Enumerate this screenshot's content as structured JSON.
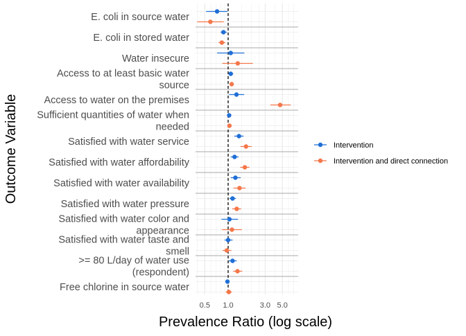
{
  "chart_data": {
    "type": "scatter",
    "subtype": "forest-plot",
    "title": "",
    "xlabel": "Prevalence Ratio (log scale)",
    "ylabel": "Outcome Variable",
    "x_scale": "log",
    "xlim": [
      0.38,
      8.0
    ],
    "x_ticks": [
      0.5,
      1.0,
      3.0,
      5.0
    ],
    "x_tick_labels": [
      "0.5",
      "1.0",
      "3.0",
      "5.0"
    ],
    "reference_line": 1.0,
    "grid": true,
    "legend_position": "right",
    "categories": [
      "E. coli in source water",
      "E. coli in stored water",
      "Water insecure",
      "Access to at least basic water source",
      "Access to water on the premises",
      "Sufficient quantities of water when needed",
      "Satisfied with water service",
      "Satisfied with water affordability",
      "Satisfied with water availability",
      "Satisfied with water pressure",
      "Satisfied with water color and appearance",
      "Satisfied with water taste and smell",
      ">= 80 L/day of water use (respondent)",
      "Free chlorine in source water"
    ],
    "category_label_lines": [
      [
        "E. coli in source water"
      ],
      [
        "E. coli in stored water"
      ],
      [
        "Water insecure"
      ],
      [
        "Access to at least basic water",
        "source"
      ],
      [
        "Access to water on the premises"
      ],
      [
        "Sufficient quantities of water when",
        "needed"
      ],
      [
        "Satisfied with water service"
      ],
      [
        "Satisfied with water affordability"
      ],
      [
        "Satisfied with water availability"
      ],
      [
        "Satisfied with water pressure"
      ],
      [
        "Satisfied with water color and",
        "appearance"
      ],
      [
        "Satisfied with water taste and",
        "smell"
      ],
      [
        ">= 80 L/day of water use",
        "(respondent)"
      ],
      [
        "Free chlorine in source water"
      ]
    ],
    "series": [
      {
        "name": "Intervention",
        "color": "#1f6fd6",
        "values": [
          0.72,
          0.87,
          1.08,
          1.08,
          1.28,
          1.03,
          1.38,
          1.21,
          1.24,
          1.14,
          1.04,
          1.0,
          1.14,
          0.98
        ],
        "lower": [
          0.52,
          0.8,
          0.72,
          1.02,
          1.03,
          0.99,
          1.2,
          1.08,
          1.08,
          1.04,
          0.82,
          0.9,
          1.01,
          0.92
        ],
        "upper": [
          0.98,
          0.96,
          1.62,
          1.16,
          1.61,
          1.06,
          1.58,
          1.36,
          1.45,
          1.26,
          1.34,
          1.14,
          1.29,
          1.04
        ]
      },
      {
        "name": "Intervention and direct connection",
        "color": "#f4774a",
        "values": [
          0.59,
          0.83,
          1.33,
          1.11,
          4.68,
          1.04,
          1.7,
          1.64,
          1.4,
          1.29,
          1.12,
          0.96,
          1.32,
          1.02
        ],
        "lower": [
          0.4,
          0.75,
          0.84,
          1.06,
          3.5,
          1.01,
          1.44,
          1.43,
          1.17,
          1.13,
          0.83,
          0.85,
          1.16,
          0.93
        ],
        "upper": [
          0.88,
          0.92,
          2.08,
          1.16,
          6.4,
          1.08,
          2.01,
          1.88,
          1.68,
          1.47,
          1.5,
          1.1,
          1.52,
          1.12
        ]
      }
    ]
  }
}
